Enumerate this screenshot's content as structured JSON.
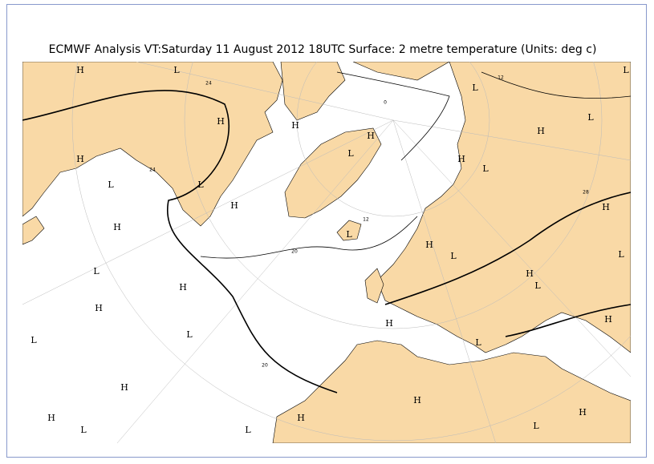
{
  "title": "ECMWF  Analysis VT:Saturday 11 August 2012 18UTC Surface: 2 metre temperature (Units: deg c)",
  "markers": [
    "H",
    "L",
    "H",
    "H",
    "L",
    "L",
    "H",
    "H",
    "L",
    "H",
    "H",
    "L",
    "L",
    "H",
    "H",
    "L",
    "L",
    "H",
    "L",
    "H",
    "H",
    "H",
    "L",
    "L",
    "H",
    "L",
    "L",
    "H",
    "L",
    "H",
    "L",
    "H",
    "H",
    "L",
    "H",
    "L",
    "H",
    "L",
    "H",
    "L"
  ],
  "contour_labels": [
    "24",
    "12",
    "0",
    "12",
    "20",
    "24",
    "28",
    "20"
  ]
}
